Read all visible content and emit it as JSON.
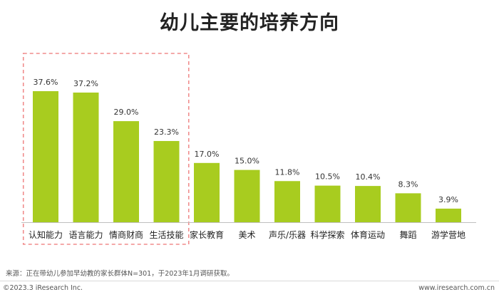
{
  "chart_data": {
    "type": "bar",
    "title": "幼儿主要的培养方向",
    "categories": [
      "认知能力",
      "语言能力",
      "情商财商",
      "生活技能",
      "家长教育",
      "美术",
      "声乐/乐器",
      "科学探索",
      "体育运动",
      "舞蹈",
      "游学营地"
    ],
    "values": [
      37.6,
      37.2,
      29.0,
      23.3,
      17.0,
      15.0,
      11.8,
      10.5,
      10.4,
      8.3,
      3.9
    ],
    "value_labels": [
      "37.6%",
      "37.2%",
      "29.0%",
      "23.3%",
      "17.0%",
      "15.0%",
      "11.8%",
      "10.5%",
      "10.4%",
      "8.3%",
      "3.9%"
    ],
    "ylim": [
      0,
      40
    ],
    "grid": false,
    "highlight_range": [
      0,
      3
    ],
    "colors": {
      "bar": "#a8cc1f",
      "highlight_box": "#f08c8c",
      "axis": "#bfbfbf"
    }
  },
  "source_note": "来源：正在带幼儿参加早幼教的家长群体N=301，于2023年1月调研获取。",
  "copyright": "©2023.3 iResearch Inc.",
  "website": "www.iresearch.com.cn"
}
